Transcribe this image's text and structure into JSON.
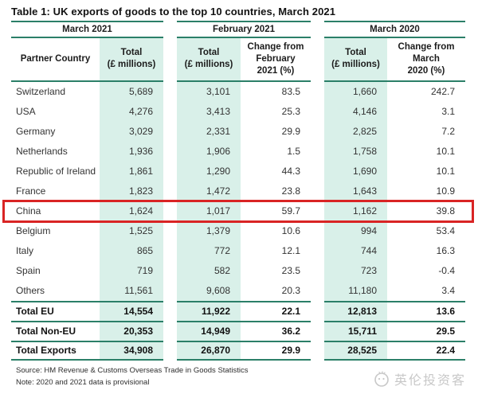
{
  "chart_data": {
    "type": "table",
    "title": "Table 1: UK exports of goods to the top 10 countries, March 2021",
    "column_groups": [
      "March 2021",
      "February 2021",
      "March 2020"
    ],
    "columns": [
      "Partner Country",
      "Total\n(£ millions)",
      "Total\n(£ millions)",
      "Change from\nFebruary\n2021 (%)",
      "Total\n(£ millions)",
      "Change from\nMarch\n2020 (%)"
    ],
    "rows": [
      {
        "name": "Switzerland",
        "values": [
          "5,689",
          "3,101",
          "83.5",
          "1,660",
          "242.7"
        ]
      },
      {
        "name": "USA",
        "values": [
          "4,276",
          "3,413",
          "25.3",
          "4,146",
          "3.1"
        ]
      },
      {
        "name": "Germany",
        "values": [
          "3,029",
          "2,331",
          "29.9",
          "2,825",
          "7.2"
        ]
      },
      {
        "name": "Netherlands",
        "values": [
          "1,936",
          "1,906",
          "1.5",
          "1,758",
          "10.1"
        ]
      },
      {
        "name": "Republic of Ireland",
        "values": [
          "1,861",
          "1,290",
          "44.3",
          "1,690",
          "10.1"
        ]
      },
      {
        "name": "France",
        "values": [
          "1,823",
          "1,472",
          "23.8",
          "1,643",
          "10.9"
        ]
      },
      {
        "name": "China",
        "values": [
          "1,624",
          "1,017",
          "59.7",
          "1,162",
          "39.8"
        ],
        "highlighted": true
      },
      {
        "name": "Belgium",
        "values": [
          "1,525",
          "1,379",
          "10.6",
          "994",
          "53.4"
        ]
      },
      {
        "name": "Italy",
        "values": [
          "865",
          "772",
          "12.1",
          "744",
          "16.3"
        ]
      },
      {
        "name": "Spain",
        "values": [
          "719",
          "582",
          "23.5",
          "723",
          "-0.4"
        ]
      },
      {
        "name": "Others",
        "values": [
          "11,561",
          "9,608",
          "20.3",
          "11,180",
          "3.4"
        ]
      },
      {
        "name": "Total EU",
        "values": [
          "14,554",
          "11,922",
          "22.1",
          "12,813",
          "13.6"
        ],
        "total": true
      },
      {
        "name": "Total Non-EU",
        "values": [
          "20,353",
          "14,949",
          "36.2",
          "15,711",
          "29.5"
        ],
        "total": true
      },
      {
        "name": "Total Exports",
        "values": [
          "34,908",
          "26,870",
          "29.9",
          "28,525",
          "22.4"
        ],
        "total": true
      }
    ]
  },
  "footer": {
    "source": "Source: HM Revenue & Customs Overseas Trade in Goods Statistics",
    "note": "Note: 2020 and 2021 data is provisional",
    "watermark_text": "英伦投资客"
  },
  "colors": {
    "rule_teal": "#2b7f68",
    "column_mint": "#d9f0e9",
    "highlight_red": "#d92424",
    "watermark_gray": "#c8c8c8"
  }
}
